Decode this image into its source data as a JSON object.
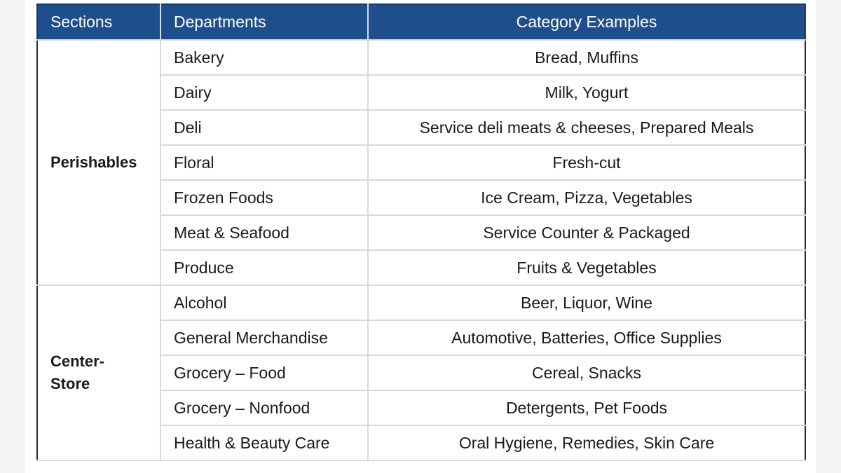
{
  "table": {
    "headers": [
      "Sections",
      "Departments",
      "Category Examples"
    ],
    "sections": [
      {
        "name": "Perishables",
        "rows": [
          {
            "department": "Bakery",
            "examples": "Bread, Muffins"
          },
          {
            "department": "Dairy",
            "examples": "Milk, Yogurt"
          },
          {
            "department": "Deli",
            "examples": "Service deli meats & cheeses, Prepared Meals"
          },
          {
            "department": "Floral",
            "examples": "Fresh-cut"
          },
          {
            "department": "Frozen Foods",
            "examples": "Ice Cream, Pizza, Vegetables"
          },
          {
            "department": "Meat & Seafood",
            "examples": "Service Counter & Packaged"
          },
          {
            "department": "Produce",
            "examples": "Fruits & Vegetables"
          }
        ]
      },
      {
        "name": "Center-\nStore",
        "rows": [
          {
            "department": "Alcohol",
            "examples": "Beer, Liquor, Wine"
          },
          {
            "department": "General Merchandise",
            "examples": "Automotive, Batteries, Office Supplies"
          },
          {
            "department": "Grocery – Food",
            "examples": "Cereal, Snacks"
          },
          {
            "department": "Grocery – Nonfood",
            "examples": "Detergents, Pet Foods"
          },
          {
            "department": "Health & Beauty Care",
            "examples": "Oral Hygiene, Remedies, Skin Care"
          }
        ]
      }
    ]
  },
  "colors": {
    "header_bg": "#1f4e8c",
    "header_text": "#ffffff",
    "border": "#d9d9d9"
  }
}
